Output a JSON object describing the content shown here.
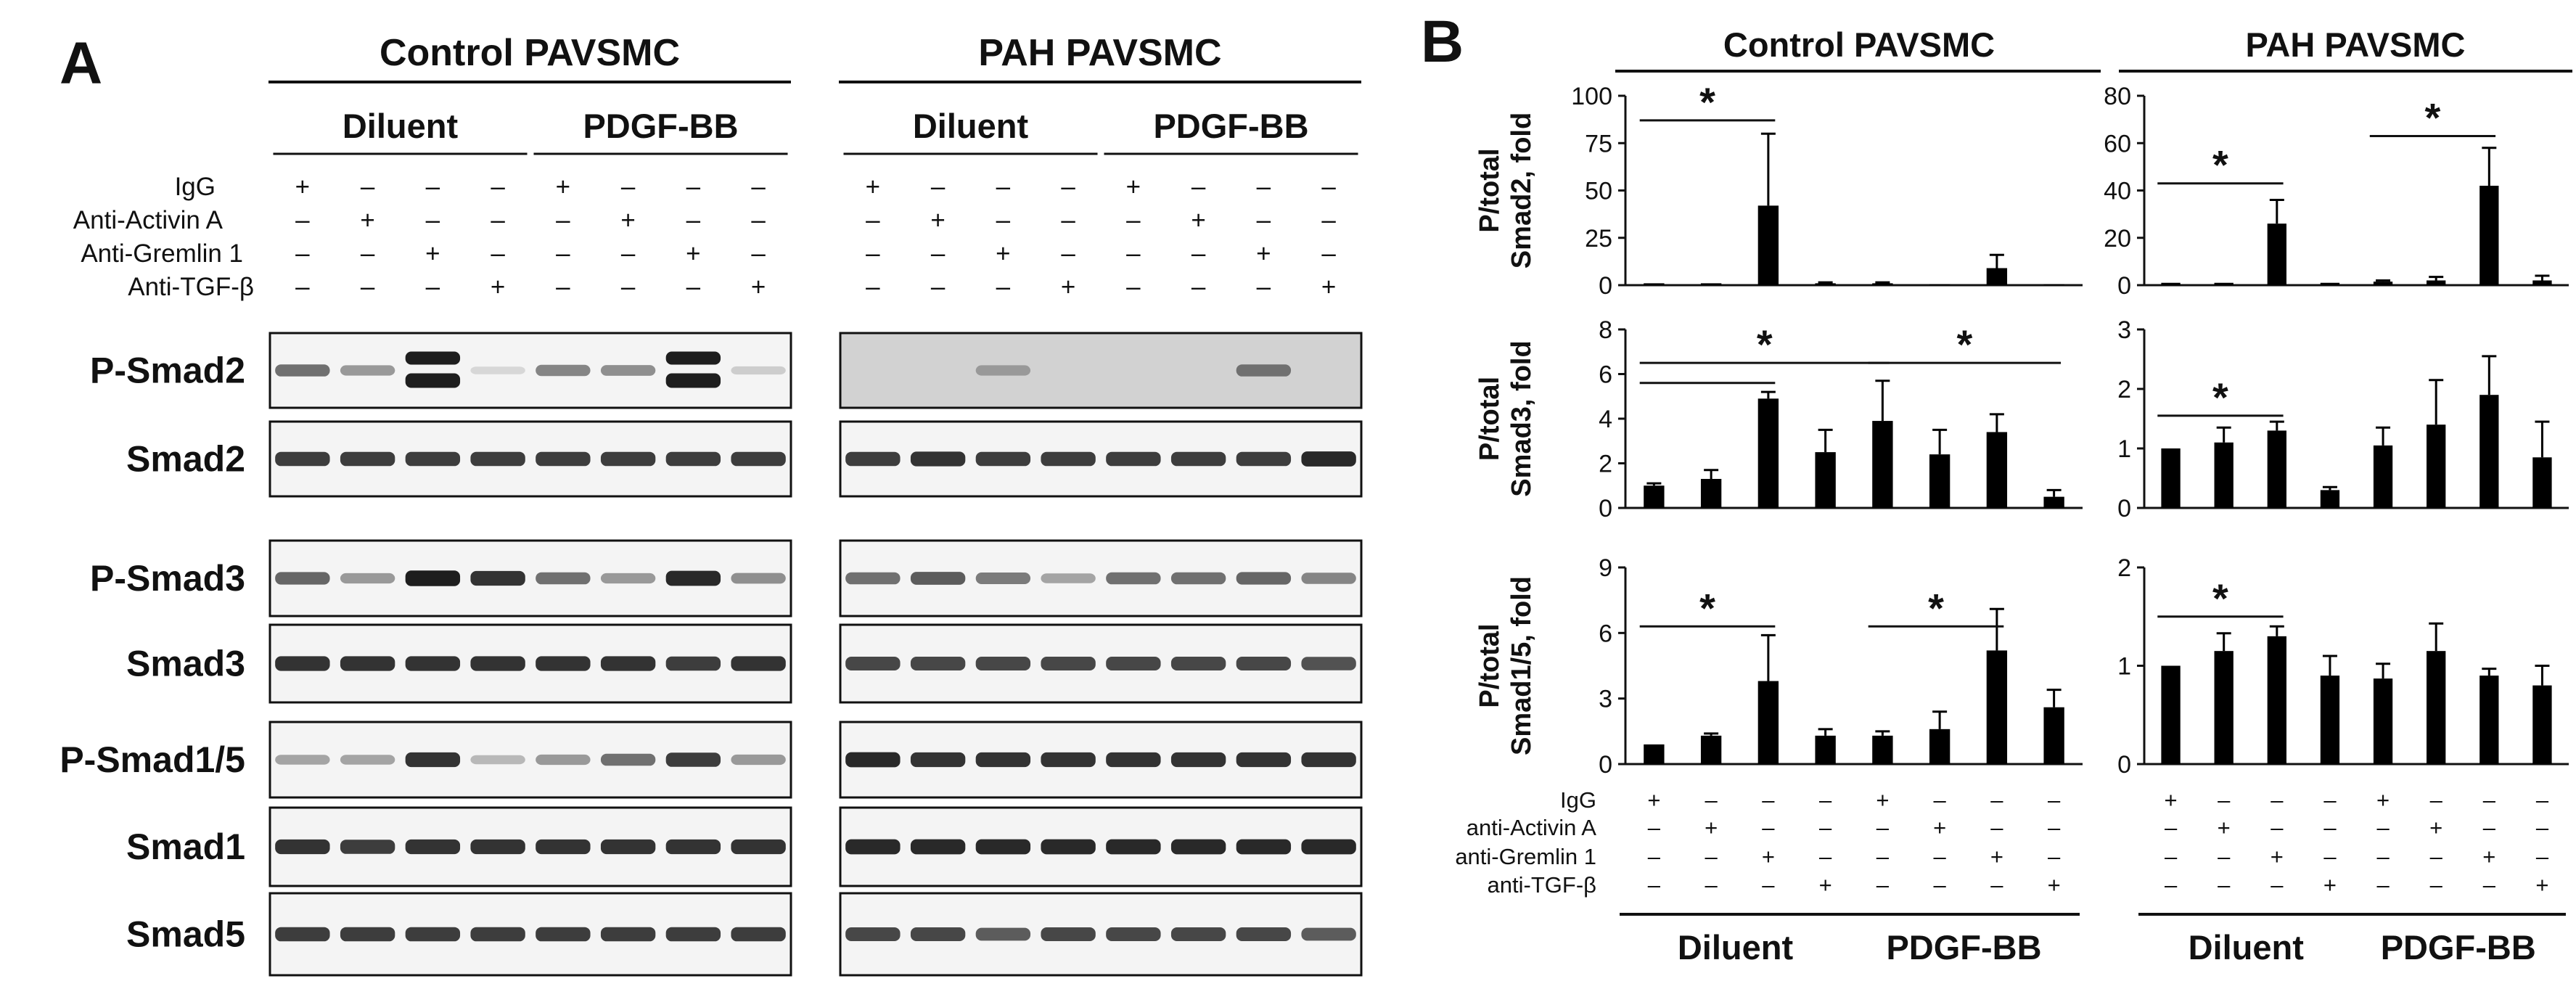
{
  "panel_a": {
    "label": "A",
    "groups": [
      {
        "title": "Control PAVSMC",
        "conditions": [
          "Diluent",
          "PDGF-BB"
        ]
      },
      {
        "title": "PAH PAVSMC",
        "conditions": [
          "Diluent",
          "PDGF-BB"
        ]
      }
    ],
    "treatments": [
      {
        "label": "IgG",
        "signs": [
          "+",
          "-",
          "-",
          "-",
          "+",
          "-",
          "-",
          "-"
        ]
      },
      {
        "label": "Anti-Activin A",
        "signs": [
          "-",
          "+",
          "-",
          "-",
          "-",
          "+",
          "-",
          "-"
        ]
      },
      {
        "label": "Anti-Gremlin 1",
        "signs": [
          "-",
          "-",
          "+",
          "-",
          "-",
          "-",
          "+",
          "-"
        ]
      },
      {
        "label": "Anti-TGF-β",
        "signs": [
          "-",
          "-",
          "-",
          "+",
          "-",
          "-",
          "-",
          "+"
        ]
      }
    ],
    "blots": [
      {
        "label": "P-Smad2",
        "control_intensity": [
          0.55,
          0.35,
          0.95,
          0.05,
          0.45,
          0.4,
          0.95,
          0.1
        ],
        "control_double_band": [
          false,
          false,
          true,
          false,
          false,
          false,
          true,
          false
        ],
        "pah_intensity": [
          0,
          0,
          0.35,
          0,
          0,
          0,
          0.55,
          0
        ],
        "pah_background": "#d2d2d2"
      },
      {
        "label": "Smad2",
        "control_intensity": [
          0.8,
          0.8,
          0.8,
          0.8,
          0.8,
          0.8,
          0.8,
          0.8
        ],
        "pah_intensity": [
          0.8,
          0.85,
          0.8,
          0.8,
          0.8,
          0.8,
          0.8,
          0.9
        ]
      },
      {
        "label": "P-Smad3",
        "control_intensity": [
          0.6,
          0.35,
          0.95,
          0.85,
          0.55,
          0.35,
          0.9,
          0.4
        ],
        "pah_intensity": [
          0.55,
          0.65,
          0.5,
          0.3,
          0.55,
          0.55,
          0.6,
          0.45
        ]
      },
      {
        "label": "Smad3",
        "control_intensity": [
          0.85,
          0.85,
          0.85,
          0.85,
          0.85,
          0.85,
          0.8,
          0.85
        ],
        "pah_intensity": [
          0.75,
          0.75,
          0.75,
          0.75,
          0.75,
          0.75,
          0.75,
          0.7
        ]
      },
      {
        "label": "P-Smad1/5",
        "control_intensity": [
          0.3,
          0.3,
          0.85,
          0.2,
          0.35,
          0.55,
          0.8,
          0.35
        ],
        "pah_intensity": [
          0.9,
          0.85,
          0.85,
          0.85,
          0.85,
          0.85,
          0.85,
          0.85
        ]
      },
      {
        "label": "Smad1",
        "control_intensity": [
          0.85,
          0.8,
          0.85,
          0.85,
          0.85,
          0.85,
          0.85,
          0.85
        ],
        "pah_intensity": [
          0.9,
          0.9,
          0.9,
          0.9,
          0.9,
          0.9,
          0.9,
          0.9
        ]
      },
      {
        "label": "Smad5",
        "control_intensity": [
          0.8,
          0.8,
          0.8,
          0.8,
          0.8,
          0.8,
          0.8,
          0.8
        ],
        "pah_intensity": [
          0.75,
          0.75,
          0.65,
          0.75,
          0.75,
          0.75,
          0.75,
          0.65
        ]
      }
    ]
  },
  "panel_b": {
    "label": "B",
    "column_titles": [
      "Control PAVSMC",
      "PAH PAVSMC"
    ],
    "conditions": [
      "Diluent",
      "PDGF-BB"
    ],
    "treatments": [
      {
        "label": "IgG",
        "signs": [
          "+",
          "-",
          "-",
          "-",
          "+",
          "-",
          "-",
          "-"
        ]
      },
      {
        "label": "anti-Activin A",
        "signs": [
          "-",
          "+",
          "-",
          "-",
          "-",
          "+",
          "-",
          "-"
        ]
      },
      {
        "label": "anti-Gremlin 1",
        "signs": [
          "-",
          "-",
          "+",
          "-",
          "-",
          "-",
          "+",
          "-"
        ]
      },
      {
        "label": "anti-TGF-β",
        "signs": [
          "-",
          "-",
          "-",
          "+",
          "-",
          "-",
          "-",
          "+"
        ]
      }
    ]
  },
  "chart_data": [
    {
      "type": "bar",
      "title": "Control PAVSMC",
      "ylabel": "P/total Smad2, fold",
      "ylim": [
        0,
        100
      ],
      "yticks": [
        0,
        25,
        50,
        75,
        100
      ],
      "values": [
        1,
        1,
        42,
        1,
        1,
        0.5,
        9,
        0.5
      ],
      "errors": [
        0,
        0,
        38,
        0.5,
        0.5,
        0,
        7,
        0
      ],
      "significance": [
        {
          "from": 0,
          "to": 2,
          "y": 87,
          "label": "*"
        }
      ]
    },
    {
      "type": "bar",
      "title": "PAH PAVSMC",
      "ylabel": "P/total Smad2, fold",
      "ylim": [
        0,
        80
      ],
      "yticks": [
        0,
        20,
        40,
        60,
        80
      ],
      "values": [
        1,
        1,
        26,
        1,
        1.5,
        2,
        42,
        2
      ],
      "errors": [
        0,
        0,
        10,
        0,
        0.5,
        1.5,
        16,
        2
      ],
      "significance": [
        {
          "from": 0,
          "to": 2,
          "y": 43,
          "label": "*"
        },
        {
          "from": 4,
          "to": 6,
          "y": 63,
          "label": "*"
        }
      ]
    },
    {
      "type": "bar",
      "title": "Control PAVSMC",
      "ylabel": "P/total Smad3, fold",
      "ylim": [
        0,
        8
      ],
      "yticks": [
        0,
        2,
        4,
        6,
        8
      ],
      "values": [
        1,
        1.3,
        4.9,
        2.5,
        3.9,
        2.4,
        3.4,
        0.5
      ],
      "errors": [
        0.1,
        0.4,
        0.3,
        1,
        1.8,
        1.1,
        0.8,
        0.3
      ],
      "significance": [
        {
          "from": 0,
          "to": 4,
          "y": 6.5,
          "label": "*"
        },
        {
          "from": 4,
          "to": 7,
          "y": 6.5,
          "label": "*"
        },
        {
          "from": 0,
          "to": 2,
          "y": 5.6,
          "label": ""
        }
      ]
    },
    {
      "type": "bar",
      "title": "PAH PAVSMC",
      "ylabel": "P/total Smad3, fold",
      "ylim": [
        0,
        3
      ],
      "yticks": [
        0,
        1,
        2,
        3
      ],
      "values": [
        1,
        1.1,
        1.3,
        0.3,
        1.05,
        1.4,
        1.9,
        0.85
      ],
      "errors": [
        0,
        0.25,
        0.15,
        0.05,
        0.3,
        0.75,
        0.65,
        0.6
      ],
      "significance": [
        {
          "from": 0,
          "to": 2,
          "y": 1.55,
          "label": "*"
        }
      ]
    },
    {
      "type": "bar",
      "title": "Control PAVSMC",
      "ylabel": "P/total Smad1/5, fold",
      "ylim": [
        0,
        9
      ],
      "yticks": [
        0,
        3,
        6,
        9
      ],
      "values": [
        0.9,
        1.3,
        3.8,
        1.3,
        1.3,
        1.6,
        5.2,
        2.6
      ],
      "errors": [
        0,
        0.1,
        2.1,
        0.3,
        0.2,
        0.8,
        1.9,
        0.8
      ],
      "significance": [
        {
          "from": 0,
          "to": 2,
          "y": 6.3,
          "label": "*"
        },
        {
          "from": 4,
          "to": 6,
          "y": 6.3,
          "label": "*"
        }
      ]
    },
    {
      "type": "bar",
      "title": "PAH PAVSMC",
      "ylabel": "P/total Smad1/5, fold",
      "ylim": [
        0,
        2
      ],
      "yticks": [
        0,
        1,
        2
      ],
      "values": [
        1,
        1.15,
        1.3,
        0.9,
        0.87,
        1.15,
        0.9,
        0.8
      ],
      "errors": [
        0,
        0.18,
        0.1,
        0.2,
        0.15,
        0.28,
        0.07,
        0.2
      ],
      "significance": [
        {
          "from": 0,
          "to": 2,
          "y": 1.5,
          "label": "*"
        }
      ]
    }
  ]
}
